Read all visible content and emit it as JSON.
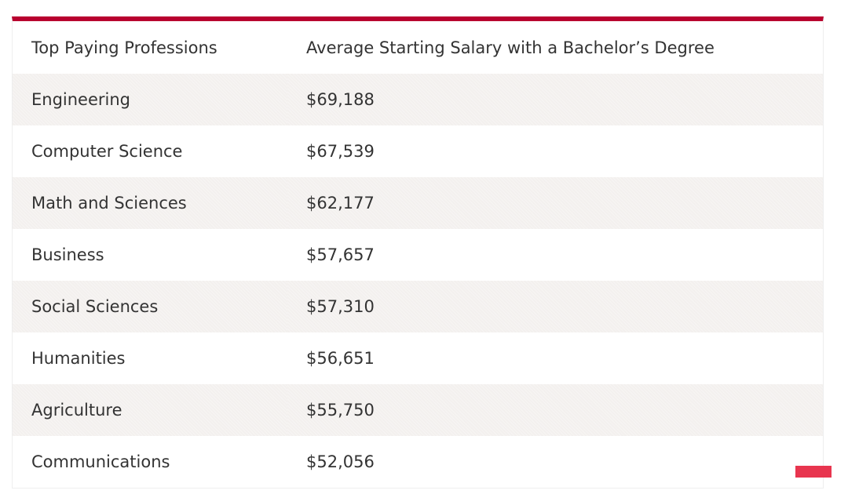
{
  "table": {
    "headers": [
      "Top Paying Professions",
      "Average Starting Salary with a Bachelor’s Degree"
    ],
    "rows": [
      [
        "Engineering",
        "$69,188"
      ],
      [
        "Computer Science",
        "$67,539"
      ],
      [
        "Math and Sciences",
        "$62,177"
      ],
      [
        "Business",
        "$57,657"
      ],
      [
        "Social Sciences",
        "$57,310"
      ],
      [
        "Humanities",
        "$56,651"
      ],
      [
        "Agriculture",
        "$55,750"
      ],
      [
        "Communications",
        "$52,056"
      ]
    ]
  },
  "colors": {
    "header_border": "#b8002f",
    "stripe": "#f3f0ee",
    "text": "#333333",
    "corner_accent": "#e8354f"
  }
}
